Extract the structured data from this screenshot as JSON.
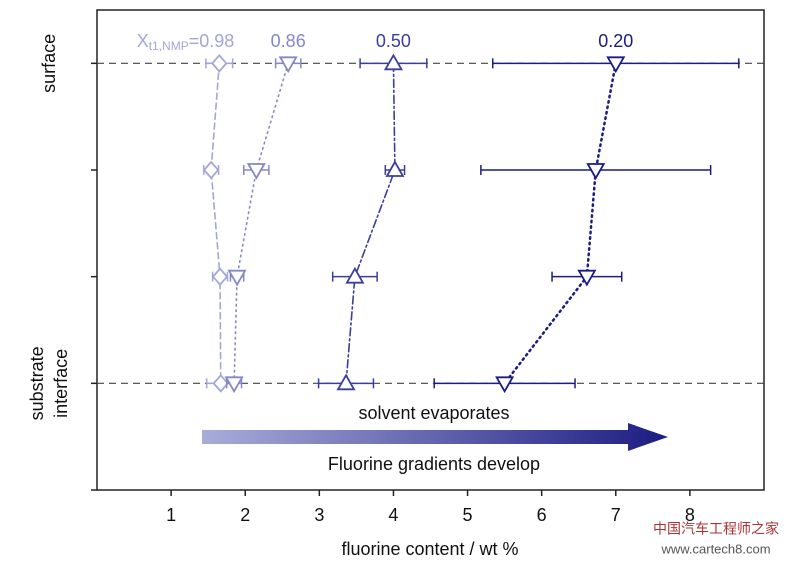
{
  "chart_data": {
    "type": "scatter",
    "xlabel": "fluorine content / wt %",
    "xlim": [
      0,
      9
    ],
    "xticks": [
      1,
      2,
      3,
      4,
      5,
      6,
      7,
      8
    ],
    "ylim": [
      -1,
      3.5
    ],
    "yticks": [
      -1,
      0,
      1,
      2,
      3
    ],
    "y": [
      3,
      2,
      1,
      0
    ],
    "hlines": [
      3,
      0
    ],
    "y_annotations": [
      {
        "value": 3,
        "lines": [
          "surface"
        ]
      },
      {
        "value": 0,
        "lines": [
          "substrate",
          "interface"
        ]
      }
    ],
    "series_label": {
      "symbol": "X",
      "subscript": "t1,NMP",
      "equals": "="
    },
    "series": [
      {
        "name": "0.98",
        "color": "#a2a7d6",
        "marker": "diamond",
        "line": "dashed",
        "x": [
          1.65,
          1.54,
          1.66,
          1.67
        ],
        "xerr": [
          0.18,
          0.1,
          0.1,
          0.19
        ]
      },
      {
        "name": "0.86",
        "color": "#8489c6",
        "marker": "triangle-down",
        "line": "dotted",
        "x": [
          2.58,
          2.15,
          1.89,
          1.85
        ],
        "xerr": [
          0.17,
          0.17,
          0.09,
          0.1
        ]
      },
      {
        "name": "0.50",
        "color": "#3b3f9c",
        "marker": "triangle-up",
        "line": "dashdot",
        "x": [
          4.0,
          4.02,
          3.48,
          3.36
        ],
        "xerr": [
          0.45,
          0.13,
          0.3,
          0.37
        ]
      },
      {
        "name": "0.20",
        "color": "#1c1c82",
        "marker": "triangle-down",
        "line": "dotted",
        "x": [
          7.0,
          6.73,
          6.61,
          5.5
        ],
        "xerr": [
          1.66,
          1.55,
          0.47,
          0.95
        ]
      }
    ],
    "arrow_labels": [
      "solvent evaporates",
      "Fluorine gradients develop"
    ],
    "watermark": [
      "中国汽车工程师之家",
      "www.cartech8.com"
    ]
  }
}
